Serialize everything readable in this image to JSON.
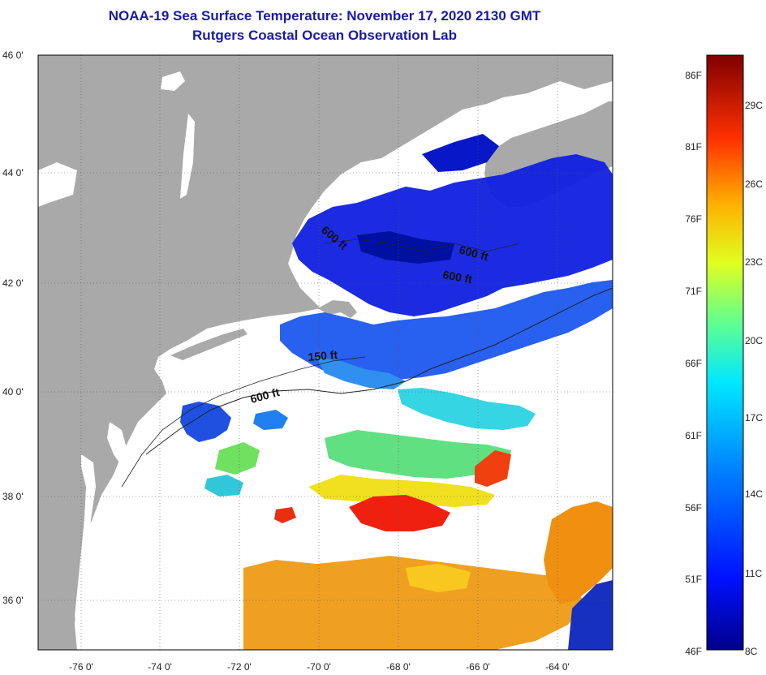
{
  "title": {
    "line1": "NOAA-19 Sea Surface Temperature:  November 17, 2020 2130 GMT",
    "line2": "Rutgers Coastal Ocean Observation Lab"
  },
  "axes": {
    "lat_labels": [
      "46 0'",
      "44 0'",
      "42 0'",
      "40 0'",
      "38 0'",
      "36 0'"
    ],
    "lon_labels": [
      "-76 0'",
      "-74 0'",
      "-72 0'",
      "-70 0'",
      "-68 0'",
      "-66 0'",
      "-64 0'"
    ]
  },
  "isobaths": [
    {
      "label": "600 ft",
      "angle": 40
    },
    {
      "label": "600 ft",
      "angle": 15
    },
    {
      "label": "600 ft",
      "angle": 10
    },
    {
      "label": "150 ft",
      "angle": -5
    },
    {
      "label": "600 ft",
      "angle": -15
    }
  ],
  "colorbar": {
    "fahrenheit": [
      "86F",
      "81F",
      "76F",
      "71F",
      "66F",
      "61F",
      "56F",
      "51F",
      "46F"
    ],
    "celsius": [
      "29C",
      "26C",
      "23C",
      "20C",
      "17C",
      "14C",
      "11C",
      "8C"
    ]
  },
  "colors": {
    "title": "#1a1aa8",
    "land": "#a9a9a9",
    "cloud": "#ffffff"
  }
}
